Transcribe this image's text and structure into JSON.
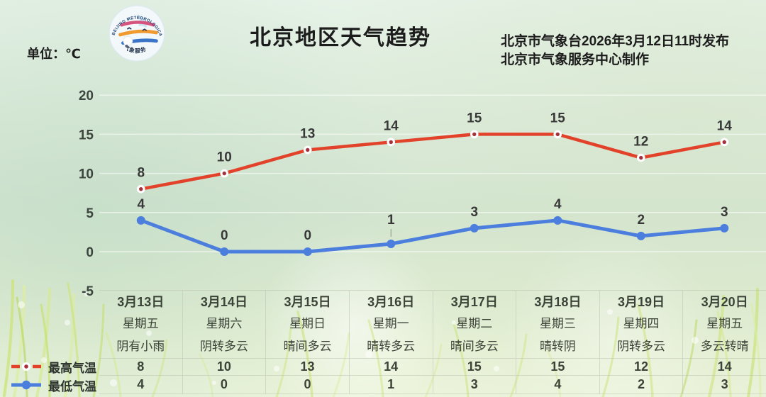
{
  "header": {
    "title": "北京地区天气趋势",
    "unit_label": "单位：℃",
    "publisher_line1": "北京市气象台2026年3月12日11时发布",
    "publisher_line2": "北京市气象服务中心制作",
    "logo_text_top": "BEIJING METEOROLOGICAL SERVICE",
    "logo_text_bottom": "气象服务"
  },
  "colors": {
    "max_temp_line": "#e2422a",
    "max_temp_marker_inner": "#a3323c",
    "min_temp_line": "#4c7ede",
    "gridline": "#ffffff"
  },
  "legend": [
    {
      "label": "最高气温",
      "style": "dashed-line-with-ring-dot",
      "color": "#e2422a"
    },
    {
      "label": "最低气温",
      "style": "solid-line-with-dot",
      "color": "#4c7ede"
    }
  ],
  "chart_data": {
    "type": "line",
    "title": "北京地区天气趋势",
    "ylabel": "℃",
    "ylim": [
      -5,
      20
    ],
    "yticks": [
      20,
      15,
      10,
      5,
      0,
      -5
    ],
    "grid": true,
    "legend_position": "bottom-left",
    "categories": [
      "3月13日",
      "3月14日",
      "3月15日",
      "3月16日",
      "3月17日",
      "3月18日",
      "3月19日",
      "3月20日"
    ],
    "weekdays": [
      "星期五",
      "星期六",
      "星期日",
      "星期一",
      "星期二",
      "星期三",
      "星期四",
      "星期五"
    ],
    "weather": [
      "阴有小雨",
      "阴转多云",
      "晴间多云",
      "晴转多云",
      "晴间多云",
      "晴转阴",
      "阴转多云",
      "多云转晴"
    ],
    "series": [
      {
        "name": "最高气温",
        "color": "#e2422a",
        "values": [
          8,
          10,
          13,
          14,
          15,
          15,
          12,
          14
        ]
      },
      {
        "name": "最低气温",
        "color": "#4c7ede",
        "values": [
          4,
          0,
          0,
          1,
          3,
          4,
          2,
          3
        ],
        "label_offsets": {
          "3": -28
        }
      }
    ]
  }
}
